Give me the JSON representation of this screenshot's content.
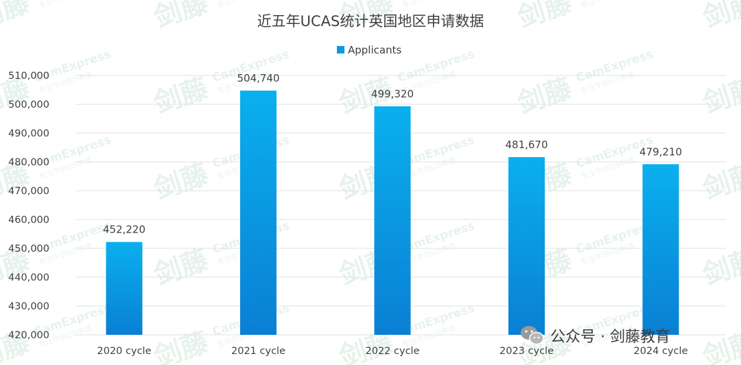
{
  "chart_data": {
    "type": "bar",
    "title": "近五年UCAS统计英国地区申请数据",
    "xlabel": "",
    "ylabel": "",
    "categories": [
      "2020 cycle",
      "2021 cycle",
      "2022 cycle",
      "2023 cycle",
      "2024 cycle"
    ],
    "series": [
      {
        "name": "Applicants",
        "values": [
          452220,
          504740,
          499320,
          481670,
          479210
        ]
      }
    ],
    "data_labels": [
      "452,220",
      "504,740",
      "499,320",
      "481,670",
      "479,210"
    ],
    "ylim": [
      420000,
      510000
    ],
    "yticks": [
      420000,
      430000,
      440000,
      450000,
      460000,
      470000,
      480000,
      490000,
      500000,
      510000
    ],
    "ytick_labels": [
      "420,000",
      "430,000",
      "440,000",
      "450,000",
      "460,000",
      "470,000",
      "480,000",
      "490,000",
      "500,000",
      "510,000"
    ],
    "grid": true,
    "legend_position": "top-center",
    "bar_color_top": "#0ab0ee",
    "bar_color_bottom": "#0a7fd4"
  },
  "watermark": {
    "brand": "剑藤",
    "text": "CamExpress",
    "subtext": "专注牛剑G5申请"
  },
  "footer": {
    "label": "公众号 · 剑藤教育",
    "icon": "wechat-icon"
  }
}
